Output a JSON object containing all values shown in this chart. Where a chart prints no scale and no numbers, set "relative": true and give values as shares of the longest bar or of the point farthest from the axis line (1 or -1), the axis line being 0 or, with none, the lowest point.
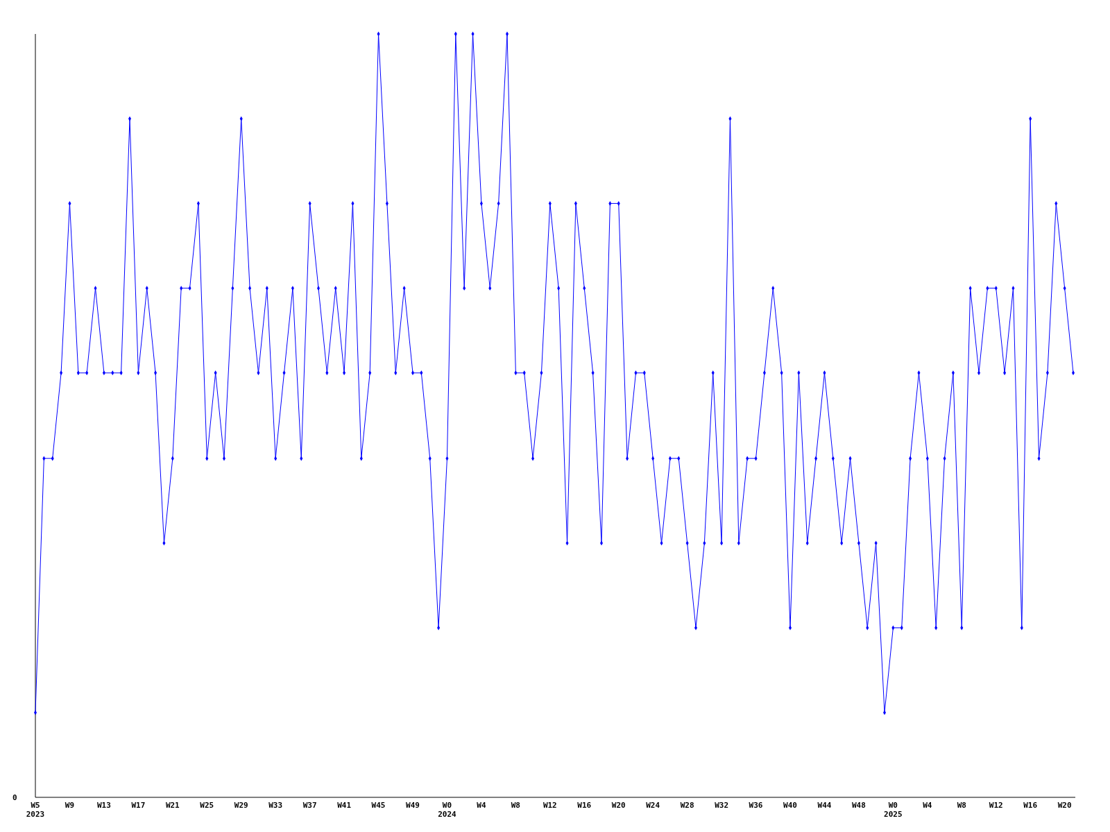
{
  "chart_data": {
    "type": "line",
    "relative": true,
    "marker": "diamond",
    "annotations": [
      "0"
    ],
    "categories": [
      "W5\n2023",
      null,
      null,
      null,
      "W9",
      null,
      null,
      null,
      "W13",
      null,
      null,
      null,
      "W17",
      null,
      null,
      null,
      "W21",
      null,
      null,
      null,
      "W25",
      null,
      null,
      null,
      "W29",
      null,
      null,
      null,
      "W33",
      null,
      null,
      null,
      "W37",
      null,
      null,
      null,
      "W41",
      null,
      null,
      null,
      "W45",
      null,
      null,
      null,
      "W49",
      null,
      null,
      null,
      "W0\n2024",
      null,
      null,
      null,
      "W4",
      null,
      null,
      null,
      "W8",
      null,
      null,
      null,
      "W12",
      null,
      null,
      null,
      "W16",
      null,
      null,
      null,
      "W20",
      null,
      null,
      null,
      "W24",
      null,
      null,
      null,
      "W28",
      null,
      null,
      null,
      "W32",
      null,
      null,
      null,
      "W36",
      null,
      null,
      null,
      "W40",
      null,
      null,
      null,
      "W44",
      null,
      null,
      null,
      "W48",
      null,
      null,
      null,
      "W0\n2025",
      null,
      null,
      null,
      "W4",
      null,
      null,
      null,
      "W8",
      null,
      null,
      null,
      "W12",
      null,
      null,
      null,
      "W16",
      null,
      null,
      null,
      "W20",
      null
    ],
    "series": [
      {
        "color": "#0000ff",
        "values": [
          0.111,
          0.444,
          0.444,
          0.556,
          0.778,
          0.556,
          0.556,
          0.667,
          0.556,
          0.556,
          0.556,
          0.889,
          0.556,
          0.667,
          0.556,
          0.333,
          0.444,
          0.667,
          0.667,
          0.778,
          0.444,
          0.556,
          0.444,
          0.667,
          0.889,
          0.667,
          0.556,
          0.667,
          0.444,
          0.556,
          0.667,
          0.444,
          0.778,
          0.667,
          0.556,
          0.667,
          0.556,
          0.778,
          0.444,
          0.556,
          1,
          0.778,
          0.556,
          0.667,
          0.556,
          0.556,
          0.444,
          0.222,
          0.444,
          1,
          0.667,
          1,
          0.778,
          0.667,
          0.778,
          1,
          0.556,
          0.556,
          0.444,
          0.556,
          0.778,
          0.667,
          0.333,
          0.778,
          0.667,
          0.556,
          0.333,
          0.778,
          0.778,
          0.444,
          0.556,
          0.556,
          0.444,
          0.333,
          0.444,
          0.444,
          0.333,
          0.222,
          0.333,
          0.556,
          0.333,
          0.889,
          0.333,
          0.444,
          0.444,
          0.556,
          0.667,
          0.556,
          0.222,
          0.556,
          0.333,
          0.444,
          0.556,
          0.444,
          0.333,
          0.444,
          0.333,
          0.222,
          0.333,
          0.111,
          0.222,
          0.222,
          0.444,
          0.556,
          0.444,
          0.222,
          0.444,
          0.556,
          0.222,
          0.667,
          0.556,
          0.667,
          0.667,
          0.556,
          0.667,
          0.222,
          0.889,
          0.444,
          0.556,
          0.778,
          0.667,
          0.556
        ]
      }
    ]
  }
}
